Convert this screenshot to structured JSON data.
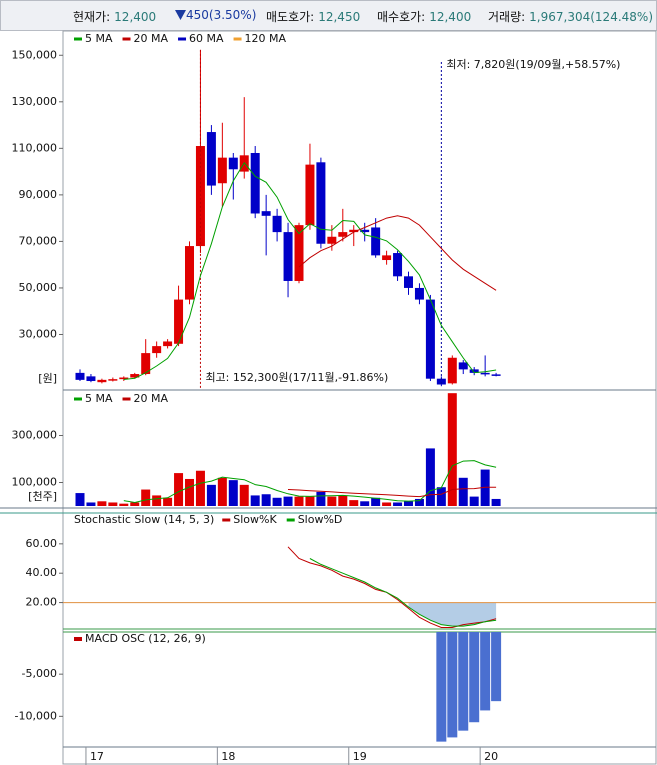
{
  "header": [
    {
      "label": "현재가:",
      "value": "12,400"
    },
    {
      "value": "450(3.50%)"
    },
    {
      "label": "매도호가:",
      "value": "12,450"
    },
    {
      "label": "매수호가:",
      "value": "12,400"
    },
    {
      "label": "거래량:",
      "value": "1,967,304(124.48%)"
    }
  ],
  "chart_data": [
    {
      "type": "candlestick",
      "unit": "[원]",
      "categories": [
        null,
        "17",
        null,
        null,
        null,
        null,
        null,
        null,
        null,
        null,
        null,
        null,
        null,
        "18",
        null,
        null,
        null,
        null,
        null,
        null,
        null,
        null,
        null,
        null,
        null,
        "19",
        null,
        null,
        null,
        null,
        null,
        null,
        null,
        null,
        null,
        null,
        null,
        "20",
        null
      ],
      "open": [
        13500,
        12000,
        9500,
        10500,
        10800,
        11500,
        13000,
        22000,
        25000,
        26000,
        45000,
        68000,
        117000,
        95000,
        106000,
        100000,
        108000,
        83000,
        81000,
        74000,
        53000,
        77000,
        104000,
        69000,
        72000,
        74000,
        75000,
        76000,
        62000,
        65000,
        55000,
        50000,
        45000,
        11000,
        9000,
        18000,
        15000,
        13500,
        12850
      ],
      "high": [
        15000,
        13000,
        11000,
        11500,
        12000,
        13500,
        28000,
        27000,
        28000,
        51000,
        70000,
        152300,
        120000,
        121000,
        108000,
        132000,
        111000,
        90000,
        84000,
        78000,
        78000,
        112000,
        106000,
        77000,
        84000,
        77000,
        78000,
        80000,
        66000,
        66000,
        57000,
        52000,
        47000,
        12000,
        21000,
        19000,
        16000,
        21000,
        13500
      ],
      "low": [
        10000,
        9500,
        9000,
        9800,
        10000,
        11000,
        12500,
        20000,
        24000,
        25000,
        43000,
        65000,
        90000,
        85000,
        88000,
        97000,
        80000,
        64000,
        70000,
        46000,
        52000,
        75000,
        67000,
        66000,
        70000,
        68000,
        70000,
        63000,
        60000,
        53000,
        47000,
        43000,
        10000,
        7820,
        8500,
        13000,
        12500,
        12000,
        12000
      ],
      "close": [
        10500,
        10000,
        10500,
        10800,
        11500,
        13000,
        22000,
        25000,
        27000,
        45000,
        68000,
        111000,
        94000,
        106000,
        101000,
        107000,
        82000,
        81000,
        74000,
        53000,
        77000,
        103000,
        69000,
        72000,
        74000,
        75000,
        74000,
        64000,
        64000,
        55000,
        50000,
        45000,
        11000,
        8500,
        20000,
        15000,
        13500,
        12850,
        12400
      ],
      "up_color": "#e00000",
      "down_color": "#0000c8",
      "ylim": [
        7000,
        160000
      ],
      "yticks": [
        {
          "value": 30000,
          "label": "30,000"
        },
        {
          "value": 50000,
          "label": "50,000"
        },
        {
          "value": 70000,
          "label": "70,000"
        },
        {
          "value": 90000,
          "label": "90,000"
        },
        {
          "value": 110000,
          "label": "110,000"
        },
        {
          "value": 130000,
          "label": "130,000"
        },
        {
          "value": 150000,
          "label": "150,000"
        }
      ],
      "overlays": [
        {
          "name": "5 MA",
          "color": "#00a000",
          "values": [
            null,
            null,
            null,
            null,
            10660,
            11160,
            13560,
            16460,
            19700,
            26400,
            37400,
            55200,
            69000,
            84800,
            96000,
            103800,
            98000,
            95400,
            89000,
            79400,
            73400,
            77600,
            75200,
            74800,
            79000,
            78600,
            72800,
            71800,
            70200,
            66400,
            61400,
            55600,
            45000,
            33900,
            26900,
            19900,
            13600,
            13970,
            14750
          ]
        },
        {
          "name": "20 MA",
          "color": "#c00000",
          "values": [
            null,
            null,
            null,
            null,
            null,
            null,
            null,
            null,
            null,
            null,
            null,
            null,
            null,
            null,
            null,
            null,
            null,
            null,
            null,
            null,
            59000,
            63000,
            66000,
            68000,
            71000,
            74000,
            76000,
            78000,
            80000,
            81000,
            80000,
            77000,
            72000,
            67000,
            62000,
            58000,
            55000,
            52000,
            49000
          ]
        },
        {
          "name": "60 MA",
          "color": "#0000c0"
        },
        {
          "name": "120 MA",
          "color": "#f0a030"
        }
      ],
      "annotations": {
        "high": "최고: 152,300원(17/11월,-91.86%)",
        "low": "최저: 7,820원(19/09월,+58.57%)"
      }
    },
    {
      "type": "bar",
      "unit": "[천주]",
      "values": [
        55000,
        15000,
        20000,
        15000,
        10000,
        15000,
        70000,
        45000,
        35000,
        140000,
        115000,
        150000,
        90000,
        120000,
        110000,
        90000,
        45000,
        50000,
        35000,
        40000,
        40000,
        40000,
        60000,
        40000,
        45000,
        25000,
        20000,
        35000,
        15000,
        15000,
        20000,
        30000,
        245000,
        80000,
        480000,
        120000,
        40000,
        155000,
        30000
      ],
      "ylim": [
        0,
        485000
      ],
      "yticks": [
        {
          "value": 100000,
          "label": "100,000"
        },
        {
          "value": 300000,
          "label": "300,000"
        }
      ],
      "overlays": [
        {
          "name": "5 MA",
          "color": "#00a000",
          "values": [
            null,
            null,
            null,
            null,
            23000,
            15000,
            26000,
            31000,
            35000,
            61000,
            81000,
            97000,
            106000,
            123000,
            117000,
            112000,
            91000,
            83000,
            66000,
            52000,
            42000,
            41000,
            43000,
            44000,
            45000,
            42000,
            38000,
            33000,
            28000,
            22000,
            21000,
            23000,
            65000,
            78000,
            171000,
            191000,
            193000,
            175000,
            165000
          ]
        },
        {
          "name": "20 MA",
          "color": "#c00000",
          "values": [
            null,
            null,
            null,
            null,
            null,
            null,
            null,
            null,
            null,
            null,
            null,
            null,
            null,
            null,
            null,
            null,
            null,
            null,
            null,
            70000,
            68000,
            65000,
            63000,
            60000,
            57000,
            54000,
            52000,
            50000,
            48000,
            45000,
            42000,
            40000,
            48000,
            50000,
            70000,
            73000,
            74000,
            80000,
            80000
          ]
        }
      ]
    },
    {
      "type": "line",
      "title": "Stochastic Slow (14, 5, 3)",
      "ylim": [
        2,
        81
      ],
      "yticks": [
        {
          "value": 20,
          "label": "20.00"
        },
        {
          "value": 40,
          "label": "40.00"
        },
        {
          "value": 60,
          "label": "60.00"
        }
      ],
      "hline": 20,
      "hline_color": "#e09040",
      "fill_color": "#b4cde6",
      "series": [
        {
          "name": "Slow%K",
          "color": "#c00000",
          "values": [
            null,
            null,
            null,
            null,
            null,
            null,
            null,
            null,
            null,
            null,
            null,
            null,
            null,
            null,
            null,
            null,
            null,
            null,
            null,
            58,
            50,
            47,
            45,
            42,
            38,
            36,
            33,
            29,
            27,
            22,
            16,
            10,
            6,
            3,
            3,
            5,
            6,
            7,
            9
          ]
        },
        {
          "name": "Slow%D",
          "color": "#00a000",
          "values": [
            null,
            null,
            null,
            null,
            null,
            null,
            null,
            null,
            null,
            null,
            null,
            null,
            null,
            null,
            null,
            null,
            null,
            null,
            null,
            null,
            null,
            50,
            46,
            43,
            40,
            37,
            34,
            30,
            27,
            23,
            17,
            12,
            8,
            5,
            4,
            4,
            5,
            7,
            8
          ]
        }
      ]
    },
    {
      "type": "bar",
      "title": "MACD OSC (12, 26, 9)",
      "title_color": "#c00000",
      "color": "#4a6fd0",
      "ylim": [
        -13400,
        0
      ],
      "yticks": [
        {
          "value": -10000,
          "label": "-10,000"
        },
        {
          "value": -5000,
          "label": "-5,000"
        }
      ],
      "values": [
        null,
        null,
        null,
        null,
        null,
        null,
        null,
        null,
        null,
        null,
        null,
        null,
        null,
        null,
        null,
        null,
        null,
        null,
        null,
        null,
        null,
        null,
        null,
        null,
        null,
        null,
        null,
        null,
        null,
        null,
        null,
        null,
        null,
        -13000,
        -12500,
        -11700,
        -10700,
        -9300,
        -8200
      ]
    }
  ]
}
